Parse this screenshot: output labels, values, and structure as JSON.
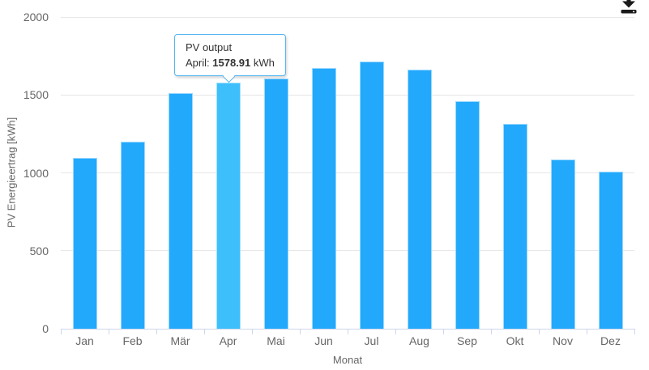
{
  "chart_data": {
    "type": "bar",
    "title": "",
    "categories": [
      "Jan",
      "Feb",
      "Mär",
      "Apr",
      "Mai",
      "Jun",
      "Jul",
      "Aug",
      "Sep",
      "Okt",
      "Nov",
      "Dez"
    ],
    "values": [
      1096,
      1200,
      1512,
      1578.91,
      1605,
      1673,
      1716,
      1662,
      1460,
      1313,
      1087,
      1006
    ],
    "series_name": "PV output",
    "xlabel": "Monat",
    "ylabel": "PV Energieertrag [kWh]",
    "ylim": [
      0,
      2000
    ],
    "yticks": [
      0,
      500,
      1000,
      1500,
      2000
    ],
    "grid": true,
    "legend": false,
    "highlighted_index": 3,
    "colors": {
      "bar": "#22a9fc",
      "bar_hover": "#3dbffc",
      "gridline": "#e6e6e6",
      "axis_line": "#ccd6eb",
      "tick_label": "#666666",
      "axis_title": "#666666",
      "tooltip_border": "#53b5f3"
    }
  },
  "tooltip": {
    "header": "PV output",
    "point_label": "April:",
    "value": "1578.91",
    "unit": "kWh"
  },
  "toolbar": {
    "export_icon": "download-icon",
    "icon_color": "#1a1a1a"
  }
}
